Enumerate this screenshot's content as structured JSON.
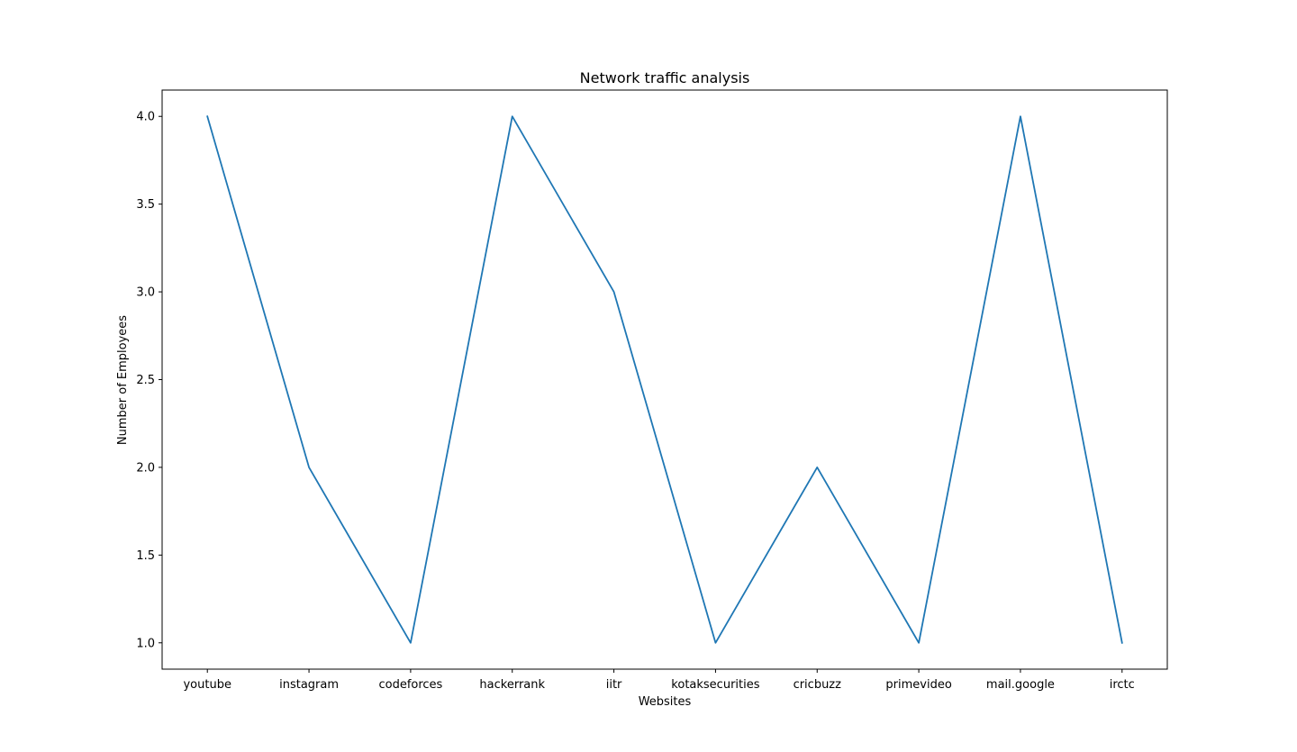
{
  "chart_data": {
    "type": "line",
    "title": "Network traffic analysis",
    "xlabel": "Websites",
    "ylabel": "Number of Employees",
    "categories": [
      "youtube",
      "instagram",
      "codeforces",
      "hackerrank",
      "iitr",
      "kotaksecurities",
      "cricbuzz",
      "primevideo",
      "mail.google",
      "irctc"
    ],
    "series": [
      {
        "values": [
          4,
          2,
          1,
          4,
          3,
          1,
          2,
          1,
          4,
          1
        ],
        "color": "#1f77b4"
      }
    ],
    "ylim": [
      0.85,
      4.15
    ],
    "yticks": [
      1.0,
      1.5,
      2.0,
      2.5,
      3.0,
      3.5,
      4.0
    ],
    "ytick_labels": [
      "1.0",
      "1.5",
      "2.0",
      "2.5",
      "3.0",
      "3.5",
      "4.0"
    ],
    "grid": false,
    "legend": "none"
  }
}
